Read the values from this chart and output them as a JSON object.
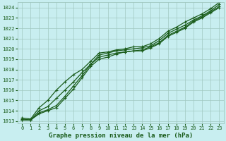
{
  "title": "Graphe pression niveau de la mer (hPa)",
  "background_color": "#c8eef0",
  "grid_color": "#a0c8c0",
  "line_color": "#1a5c1a",
  "xlim": [
    -0.5,
    23.5
  ],
  "ylim": [
    1012.8,
    1024.5
  ],
  "xticks": [
    0,
    1,
    2,
    3,
    4,
    5,
    6,
    7,
    8,
    9,
    10,
    11,
    12,
    13,
    14,
    15,
    16,
    17,
    18,
    19,
    20,
    21,
    22,
    23
  ],
  "yticks": [
    1013,
    1014,
    1015,
    1016,
    1017,
    1018,
    1019,
    1020,
    1021,
    1022,
    1023,
    1024
  ],
  "line1": [
    1013.1,
    1013.1,
    1013.7,
    1014.0,
    1014.3,
    1015.2,
    1016.1,
    1017.2,
    1018.3,
    1019.0,
    1019.2,
    1019.5,
    1019.7,
    1019.8,
    1019.8,
    1020.1,
    1020.5,
    1021.2,
    1021.6,
    1022.0,
    1022.6,
    1023.0,
    1023.5,
    1024.0
  ],
  "line2": [
    1013.1,
    1013.1,
    1013.8,
    1014.1,
    1014.5,
    1015.4,
    1016.4,
    1017.4,
    1018.5,
    1019.2,
    1019.4,
    1019.6,
    1019.7,
    1019.8,
    1019.9,
    1020.2,
    1020.6,
    1021.3,
    1021.7,
    1022.1,
    1022.7,
    1023.1,
    1023.6,
    1024.1
  ],
  "line3": [
    1013.2,
    1013.1,
    1014.0,
    1014.4,
    1015.2,
    1016.0,
    1016.8,
    1017.7,
    1018.5,
    1019.4,
    1019.6,
    1019.8,
    1019.9,
    1020.0,
    1020.1,
    1020.3,
    1020.8,
    1021.5,
    1021.9,
    1022.3,
    1022.8,
    1023.2,
    1023.7,
    1024.3
  ],
  "line4": [
    1013.3,
    1013.2,
    1014.3,
    1015.0,
    1016.0,
    1016.8,
    1017.5,
    1018.0,
    1018.8,
    1019.6,
    1019.7,
    1019.9,
    1020.0,
    1020.2,
    1020.2,
    1020.5,
    1021.0,
    1021.7,
    1022.1,
    1022.6,
    1023.0,
    1023.4,
    1023.9,
    1024.5
  ]
}
